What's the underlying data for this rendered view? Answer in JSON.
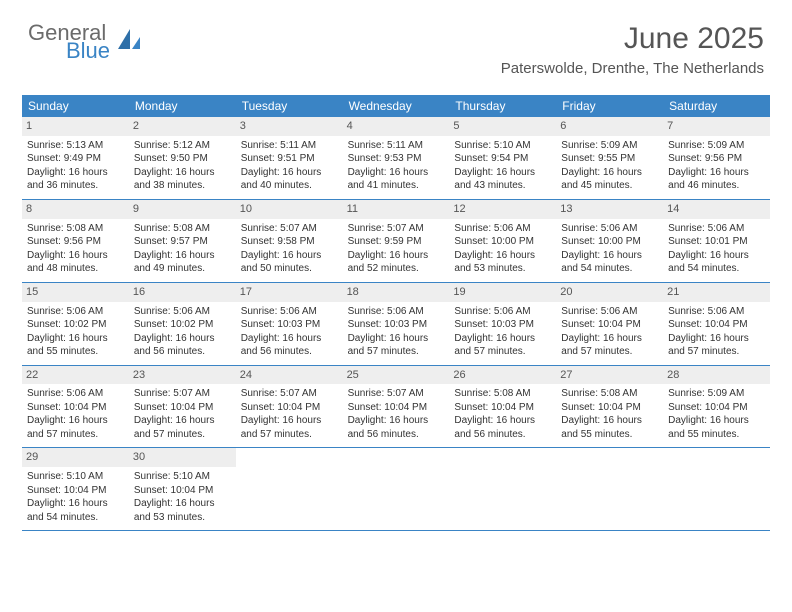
{
  "brand": {
    "word1": "General",
    "word2": "Blue"
  },
  "title": "June 2025",
  "location": "Paterswolde, Drenthe, The Netherlands",
  "colors": {
    "header_bg": "#3a84c5",
    "header_text": "#ffffff",
    "daynum_bg": "#eeeeee",
    "text": "#333333",
    "border": "#3a84c5",
    "logo_gray": "#6b6b6b",
    "logo_blue": "#3a84c5"
  },
  "typography": {
    "title_fontsize": 30,
    "location_fontsize": 15,
    "dayheader_fontsize": 12,
    "cell_fontsize": 10
  },
  "day_names": [
    "Sunday",
    "Monday",
    "Tuesday",
    "Wednesday",
    "Thursday",
    "Friday",
    "Saturday"
  ],
  "weeks": [
    [
      {
        "n": "1",
        "sr": "Sunrise: 5:13 AM",
        "ss": "Sunset: 9:49 PM",
        "d1": "Daylight: 16 hours",
        "d2": "and 36 minutes."
      },
      {
        "n": "2",
        "sr": "Sunrise: 5:12 AM",
        "ss": "Sunset: 9:50 PM",
        "d1": "Daylight: 16 hours",
        "d2": "and 38 minutes."
      },
      {
        "n": "3",
        "sr": "Sunrise: 5:11 AM",
        "ss": "Sunset: 9:51 PM",
        "d1": "Daylight: 16 hours",
        "d2": "and 40 minutes."
      },
      {
        "n": "4",
        "sr": "Sunrise: 5:11 AM",
        "ss": "Sunset: 9:53 PM",
        "d1": "Daylight: 16 hours",
        "d2": "and 41 minutes."
      },
      {
        "n": "5",
        "sr": "Sunrise: 5:10 AM",
        "ss": "Sunset: 9:54 PM",
        "d1": "Daylight: 16 hours",
        "d2": "and 43 minutes."
      },
      {
        "n": "6",
        "sr": "Sunrise: 5:09 AM",
        "ss": "Sunset: 9:55 PM",
        "d1": "Daylight: 16 hours",
        "d2": "and 45 minutes."
      },
      {
        "n": "7",
        "sr": "Sunrise: 5:09 AM",
        "ss": "Sunset: 9:56 PM",
        "d1": "Daylight: 16 hours",
        "d2": "and 46 minutes."
      }
    ],
    [
      {
        "n": "8",
        "sr": "Sunrise: 5:08 AM",
        "ss": "Sunset: 9:56 PM",
        "d1": "Daylight: 16 hours",
        "d2": "and 48 minutes."
      },
      {
        "n": "9",
        "sr": "Sunrise: 5:08 AM",
        "ss": "Sunset: 9:57 PM",
        "d1": "Daylight: 16 hours",
        "d2": "and 49 minutes."
      },
      {
        "n": "10",
        "sr": "Sunrise: 5:07 AM",
        "ss": "Sunset: 9:58 PM",
        "d1": "Daylight: 16 hours",
        "d2": "and 50 minutes."
      },
      {
        "n": "11",
        "sr": "Sunrise: 5:07 AM",
        "ss": "Sunset: 9:59 PM",
        "d1": "Daylight: 16 hours",
        "d2": "and 52 minutes."
      },
      {
        "n": "12",
        "sr": "Sunrise: 5:06 AM",
        "ss": "Sunset: 10:00 PM",
        "d1": "Daylight: 16 hours",
        "d2": "and 53 minutes."
      },
      {
        "n": "13",
        "sr": "Sunrise: 5:06 AM",
        "ss": "Sunset: 10:00 PM",
        "d1": "Daylight: 16 hours",
        "d2": "and 54 minutes."
      },
      {
        "n": "14",
        "sr": "Sunrise: 5:06 AM",
        "ss": "Sunset: 10:01 PM",
        "d1": "Daylight: 16 hours",
        "d2": "and 54 minutes."
      }
    ],
    [
      {
        "n": "15",
        "sr": "Sunrise: 5:06 AM",
        "ss": "Sunset: 10:02 PM",
        "d1": "Daylight: 16 hours",
        "d2": "and 55 minutes."
      },
      {
        "n": "16",
        "sr": "Sunrise: 5:06 AM",
        "ss": "Sunset: 10:02 PM",
        "d1": "Daylight: 16 hours",
        "d2": "and 56 minutes."
      },
      {
        "n": "17",
        "sr": "Sunrise: 5:06 AM",
        "ss": "Sunset: 10:03 PM",
        "d1": "Daylight: 16 hours",
        "d2": "and 56 minutes."
      },
      {
        "n": "18",
        "sr": "Sunrise: 5:06 AM",
        "ss": "Sunset: 10:03 PM",
        "d1": "Daylight: 16 hours",
        "d2": "and 57 minutes."
      },
      {
        "n": "19",
        "sr": "Sunrise: 5:06 AM",
        "ss": "Sunset: 10:03 PM",
        "d1": "Daylight: 16 hours",
        "d2": "and 57 minutes."
      },
      {
        "n": "20",
        "sr": "Sunrise: 5:06 AM",
        "ss": "Sunset: 10:04 PM",
        "d1": "Daylight: 16 hours",
        "d2": "and 57 minutes."
      },
      {
        "n": "21",
        "sr": "Sunrise: 5:06 AM",
        "ss": "Sunset: 10:04 PM",
        "d1": "Daylight: 16 hours",
        "d2": "and 57 minutes."
      }
    ],
    [
      {
        "n": "22",
        "sr": "Sunrise: 5:06 AM",
        "ss": "Sunset: 10:04 PM",
        "d1": "Daylight: 16 hours",
        "d2": "and 57 minutes."
      },
      {
        "n": "23",
        "sr": "Sunrise: 5:07 AM",
        "ss": "Sunset: 10:04 PM",
        "d1": "Daylight: 16 hours",
        "d2": "and 57 minutes."
      },
      {
        "n": "24",
        "sr": "Sunrise: 5:07 AM",
        "ss": "Sunset: 10:04 PM",
        "d1": "Daylight: 16 hours",
        "d2": "and 57 minutes."
      },
      {
        "n": "25",
        "sr": "Sunrise: 5:07 AM",
        "ss": "Sunset: 10:04 PM",
        "d1": "Daylight: 16 hours",
        "d2": "and 56 minutes."
      },
      {
        "n": "26",
        "sr": "Sunrise: 5:08 AM",
        "ss": "Sunset: 10:04 PM",
        "d1": "Daylight: 16 hours",
        "d2": "and 56 minutes."
      },
      {
        "n": "27",
        "sr": "Sunrise: 5:08 AM",
        "ss": "Sunset: 10:04 PM",
        "d1": "Daylight: 16 hours",
        "d2": "and 55 minutes."
      },
      {
        "n": "28",
        "sr": "Sunrise: 5:09 AM",
        "ss": "Sunset: 10:04 PM",
        "d1": "Daylight: 16 hours",
        "d2": "and 55 minutes."
      }
    ],
    [
      {
        "n": "29",
        "sr": "Sunrise: 5:10 AM",
        "ss": "Sunset: 10:04 PM",
        "d1": "Daylight: 16 hours",
        "d2": "and 54 minutes."
      },
      {
        "n": "30",
        "sr": "Sunrise: 5:10 AM",
        "ss": "Sunset: 10:04 PM",
        "d1": "Daylight: 16 hours",
        "d2": "and 53 minutes."
      },
      {
        "empty": true
      },
      {
        "empty": true
      },
      {
        "empty": true
      },
      {
        "empty": true
      },
      {
        "empty": true
      }
    ]
  ]
}
